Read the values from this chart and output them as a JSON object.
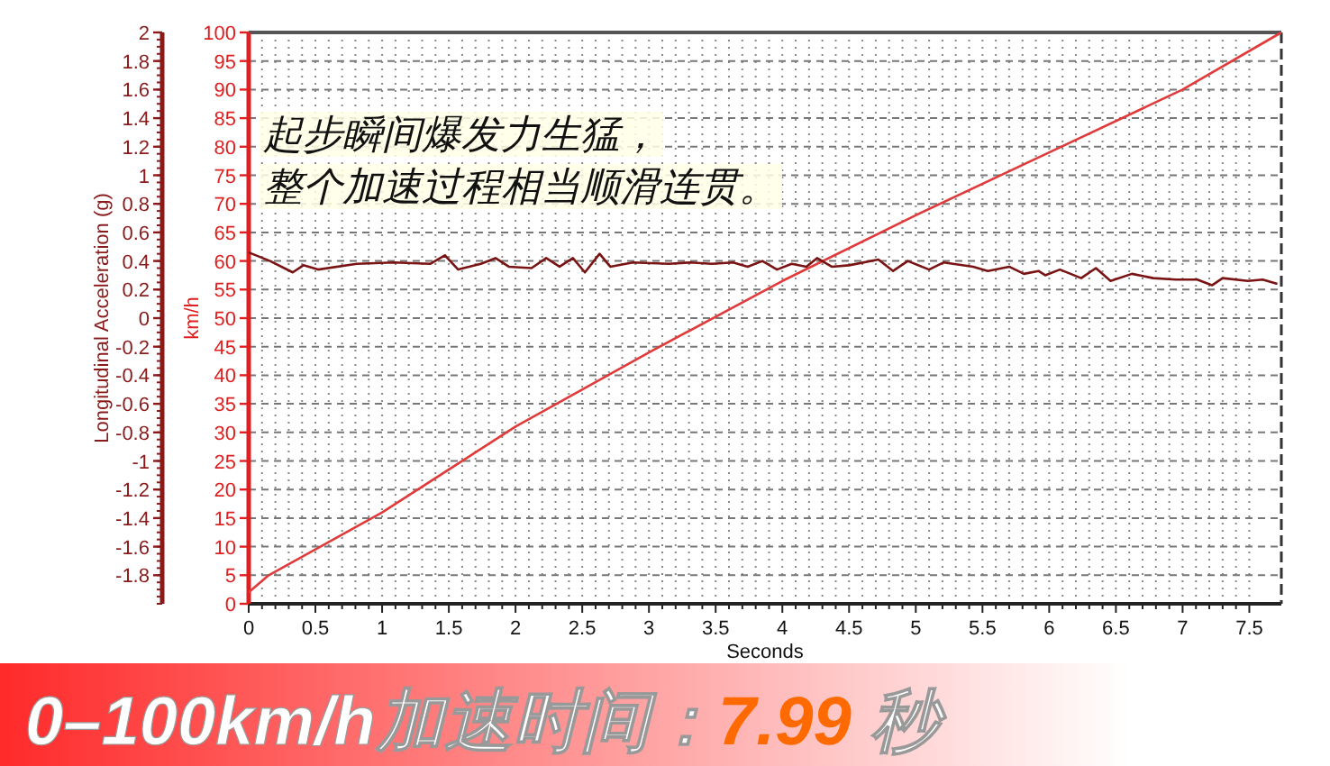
{
  "chart_data": {
    "type": "line",
    "title": "0–100km/h加速时间：7.99 秒",
    "xlabel": "Seconds",
    "ylabel": "Longitudinal Acceleration (g)",
    "y2label": "km/h",
    "annotations": [
      "起步瞬间爆发力生猛，",
      "整个加速过程相当顺滑连贯。"
    ],
    "xlim": [
      0,
      7.74
    ],
    "xticks": [
      0,
      0.5,
      1,
      1.5,
      2,
      2.5,
      3,
      3.5,
      4,
      4.5,
      5,
      5.5,
      6,
      6.5,
      7,
      7.5
    ],
    "ylim": [
      -2,
      2
    ],
    "yticks": [
      -1.8,
      -1.6,
      -1.4,
      -1.2,
      -1,
      -0.8,
      -0.6,
      -0.4,
      -0.2,
      0,
      0.2,
      0.4,
      0.6,
      0.8,
      1,
      1.2,
      1.4,
      1.6,
      1.8,
      2
    ],
    "y2lim": [
      0,
      100
    ],
    "y2ticks": [
      0,
      5,
      10,
      15,
      20,
      25,
      30,
      35,
      40,
      45,
      50,
      55,
      60,
      65,
      70,
      75,
      80,
      85,
      90,
      95,
      100
    ],
    "grid": true,
    "series": [
      {
        "color": "#e03a3a",
        "axis": "y2",
        "x": [
          0,
          0.15,
          1,
          2,
          3,
          4,
          5,
          6,
          7,
          7.74
        ],
        "values": [
          2,
          5,
          16,
          31,
          44,
          56.5,
          68,
          79,
          90,
          100
        ]
      },
      {
        "color": "#7a1414",
        "axis": "y",
        "x": [
          0,
          0.16,
          0.33,
          0.41,
          0.52,
          0.81,
          1.09,
          1.36,
          1.47,
          1.57,
          1.74,
          1.85,
          1.95,
          2.12,
          2.23,
          2.33,
          2.43,
          2.52,
          2.63,
          2.71,
          2.88,
          3.15,
          3.31,
          3.47,
          3.63,
          3.74,
          3.85,
          3.96,
          4.07,
          4.18,
          4.26,
          4.37,
          4.5,
          4.72,
          4.83,
          4.94,
          5.1,
          5.21,
          5.43,
          5.54,
          5.7,
          5.81,
          5.92,
          5.97,
          6.08,
          6.24,
          6.35,
          6.46,
          6.62,
          6.78,
          6.95,
          7.11,
          7.22,
          7.3,
          7.49,
          7.6,
          7.71
        ],
        "values": [
          0.46,
          0.4,
          0.32,
          0.37,
          0.34,
          0.38,
          0.39,
          0.38,
          0.44,
          0.34,
          0.38,
          0.42,
          0.36,
          0.35,
          0.42,
          0.36,
          0.42,
          0.32,
          0.45,
          0.36,
          0.39,
          0.38,
          0.39,
          0.38,
          0.39,
          0.36,
          0.4,
          0.34,
          0.38,
          0.36,
          0.42,
          0.36,
          0.37,
          0.41,
          0.33,
          0.4,
          0.34,
          0.39,
          0.36,
          0.33,
          0.36,
          0.31,
          0.33,
          0.3,
          0.34,
          0.28,
          0.35,
          0.26,
          0.31,
          0.28,
          0.27,
          0.27,
          0.23,
          0.28,
          0.26,
          0.27,
          0.24
        ]
      }
    ]
  }
}
